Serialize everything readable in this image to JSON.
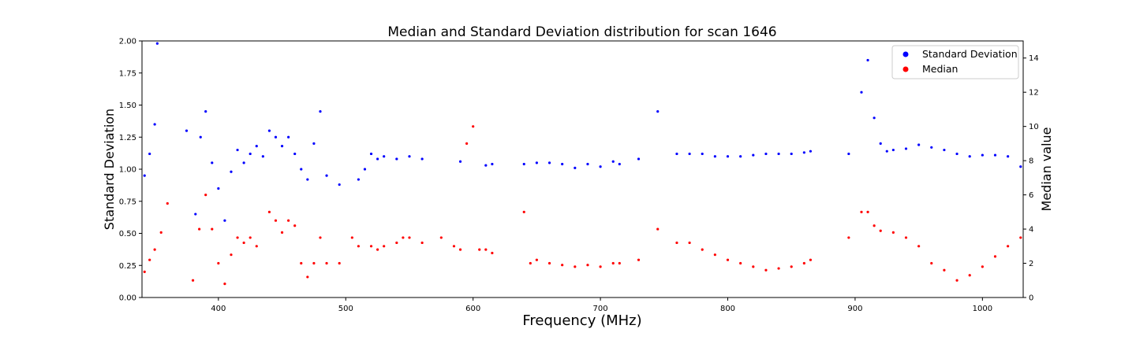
{
  "chart_data": {
    "type": "scatter",
    "title": "Median and Standard Deviation distribution for scan 1646",
    "xlabel": "Frequency (MHz)",
    "ylabel_left": "Standard Deviation",
    "ylabel_right": "Median value",
    "xlim": [
      340,
      1032
    ],
    "ylim_left": [
      0,
      2.0
    ],
    "ylim_right": [
      0,
      15
    ],
    "xticks": [
      400,
      500,
      600,
      700,
      800,
      900,
      1000
    ],
    "yticks_left": [
      "0.00",
      "0.25",
      "0.50",
      "0.75",
      "1.00",
      "1.25",
      "1.50",
      "1.75",
      "2.00"
    ],
    "yticks_right": [
      "0",
      "2",
      "4",
      "6",
      "8",
      "10",
      "12",
      "14"
    ],
    "legend_position": "upper right",
    "grid": false,
    "series": [
      {
        "name": "Standard Deviation",
        "color": "#0000ff",
        "axis": "left",
        "points": [
          [
            342,
            0.95
          ],
          [
            346,
            1.12
          ],
          [
            350,
            1.35
          ],
          [
            352,
            1.98
          ],
          [
            375,
            1.3
          ],
          [
            382,
            0.65
          ],
          [
            386,
            1.25
          ],
          [
            390,
            1.45
          ],
          [
            395,
            1.05
          ],
          [
            400,
            0.85
          ],
          [
            405,
            0.6
          ],
          [
            410,
            0.98
          ],
          [
            415,
            1.15
          ],
          [
            420,
            1.05
          ],
          [
            425,
            1.12
          ],
          [
            430,
            1.18
          ],
          [
            435,
            1.1
          ],
          [
            440,
            1.3
          ],
          [
            445,
            1.25
          ],
          [
            450,
            1.18
          ],
          [
            455,
            1.25
          ],
          [
            460,
            1.12
          ],
          [
            465,
            1.0
          ],
          [
            470,
            0.92
          ],
          [
            475,
            1.2
          ],
          [
            480,
            1.45
          ],
          [
            485,
            0.95
          ],
          [
            495,
            0.88
          ],
          [
            510,
            0.92
          ],
          [
            515,
            1.0
          ],
          [
            520,
            1.12
          ],
          [
            525,
            1.08
          ],
          [
            530,
            1.1
          ],
          [
            540,
            1.08
          ],
          [
            550,
            1.1
          ],
          [
            560,
            1.08
          ],
          [
            590,
            1.06
          ],
          [
            610,
            1.03
          ],
          [
            615,
            1.04
          ],
          [
            640,
            1.04
          ],
          [
            650,
            1.05
          ],
          [
            660,
            1.05
          ],
          [
            670,
            1.04
          ],
          [
            680,
            1.01
          ],
          [
            690,
            1.04
          ],
          [
            700,
            1.02
          ],
          [
            710,
            1.06
          ],
          [
            715,
            1.04
          ],
          [
            730,
            1.08
          ],
          [
            745,
            1.45
          ],
          [
            760,
            1.12
          ],
          [
            770,
            1.12
          ],
          [
            780,
            1.12
          ],
          [
            790,
            1.1
          ],
          [
            800,
            1.1
          ],
          [
            810,
            1.1
          ],
          [
            820,
            1.11
          ],
          [
            830,
            1.12
          ],
          [
            840,
            1.12
          ],
          [
            850,
            1.12
          ],
          [
            860,
            1.13
          ],
          [
            865,
            1.14
          ],
          [
            895,
            1.12
          ],
          [
            905,
            1.6
          ],
          [
            910,
            1.85
          ],
          [
            915,
            1.4
          ],
          [
            920,
            1.2
          ],
          [
            925,
            1.14
          ],
          [
            930,
            1.15
          ],
          [
            940,
            1.16
          ],
          [
            950,
            1.19
          ],
          [
            960,
            1.17
          ],
          [
            970,
            1.15
          ],
          [
            980,
            1.12
          ],
          [
            990,
            1.1
          ],
          [
            1000,
            1.11
          ],
          [
            1010,
            1.11
          ],
          [
            1020,
            1.1
          ],
          [
            1030,
            1.02
          ]
        ]
      },
      {
        "name": "Median",
        "color": "#ff0000",
        "axis": "right",
        "points": [
          [
            342,
            1.5
          ],
          [
            346,
            2.2
          ],
          [
            350,
            2.8
          ],
          [
            355,
            3.8
          ],
          [
            360,
            5.5
          ],
          [
            380,
            1.0
          ],
          [
            385,
            4.0
          ],
          [
            390,
            6.0
          ],
          [
            395,
            4.0
          ],
          [
            400,
            2.0
          ],
          [
            405,
            0.8
          ],
          [
            410,
            2.5
          ],
          [
            415,
            3.5
          ],
          [
            420,
            3.2
          ],
          [
            425,
            3.5
          ],
          [
            430,
            3.0
          ],
          [
            440,
            5.0
          ],
          [
            445,
            4.5
          ],
          [
            450,
            3.8
          ],
          [
            455,
            4.5
          ],
          [
            460,
            4.2
          ],
          [
            465,
            2.0
          ],
          [
            470,
            1.2
          ],
          [
            475,
            2.0
          ],
          [
            480,
            3.5
          ],
          [
            485,
            2.0
          ],
          [
            495,
            2.0
          ],
          [
            505,
            3.5
          ],
          [
            510,
            3.0
          ],
          [
            520,
            3.0
          ],
          [
            525,
            2.8
          ],
          [
            530,
            3.0
          ],
          [
            540,
            3.2
          ],
          [
            545,
            3.5
          ],
          [
            550,
            3.5
          ],
          [
            560,
            3.2
          ],
          [
            575,
            3.5
          ],
          [
            585,
            3.0
          ],
          [
            590,
            2.8
          ],
          [
            595,
            9.0
          ],
          [
            600,
            10.0
          ],
          [
            605,
            2.8
          ],
          [
            610,
            2.8
          ],
          [
            615,
            2.6
          ],
          [
            640,
            5.0
          ],
          [
            645,
            2.0
          ],
          [
            650,
            2.2
          ],
          [
            660,
            2.0
          ],
          [
            670,
            1.9
          ],
          [
            680,
            1.8
          ],
          [
            690,
            1.9
          ],
          [
            700,
            1.8
          ],
          [
            710,
            2.0
          ],
          [
            715,
            2.0
          ],
          [
            730,
            2.2
          ],
          [
            745,
            4.0
          ],
          [
            760,
            3.2
          ],
          [
            770,
            3.2
          ],
          [
            780,
            2.8
          ],
          [
            790,
            2.5
          ],
          [
            800,
            2.2
          ],
          [
            810,
            2.0
          ],
          [
            820,
            1.8
          ],
          [
            830,
            1.6
          ],
          [
            840,
            1.7
          ],
          [
            850,
            1.8
          ],
          [
            860,
            2.0
          ],
          [
            865,
            2.2
          ],
          [
            895,
            3.5
          ],
          [
            905,
            5.0
          ],
          [
            910,
            5.0
          ],
          [
            915,
            4.2
          ],
          [
            920,
            3.9
          ],
          [
            930,
            3.8
          ],
          [
            940,
            3.5
          ],
          [
            950,
            3.0
          ],
          [
            960,
            2.0
          ],
          [
            970,
            1.6
          ],
          [
            980,
            1.0
          ],
          [
            990,
            1.3
          ],
          [
            1000,
            1.8
          ],
          [
            1010,
            2.4
          ],
          [
            1020,
            3.0
          ],
          [
            1030,
            3.5
          ]
        ]
      }
    ]
  }
}
